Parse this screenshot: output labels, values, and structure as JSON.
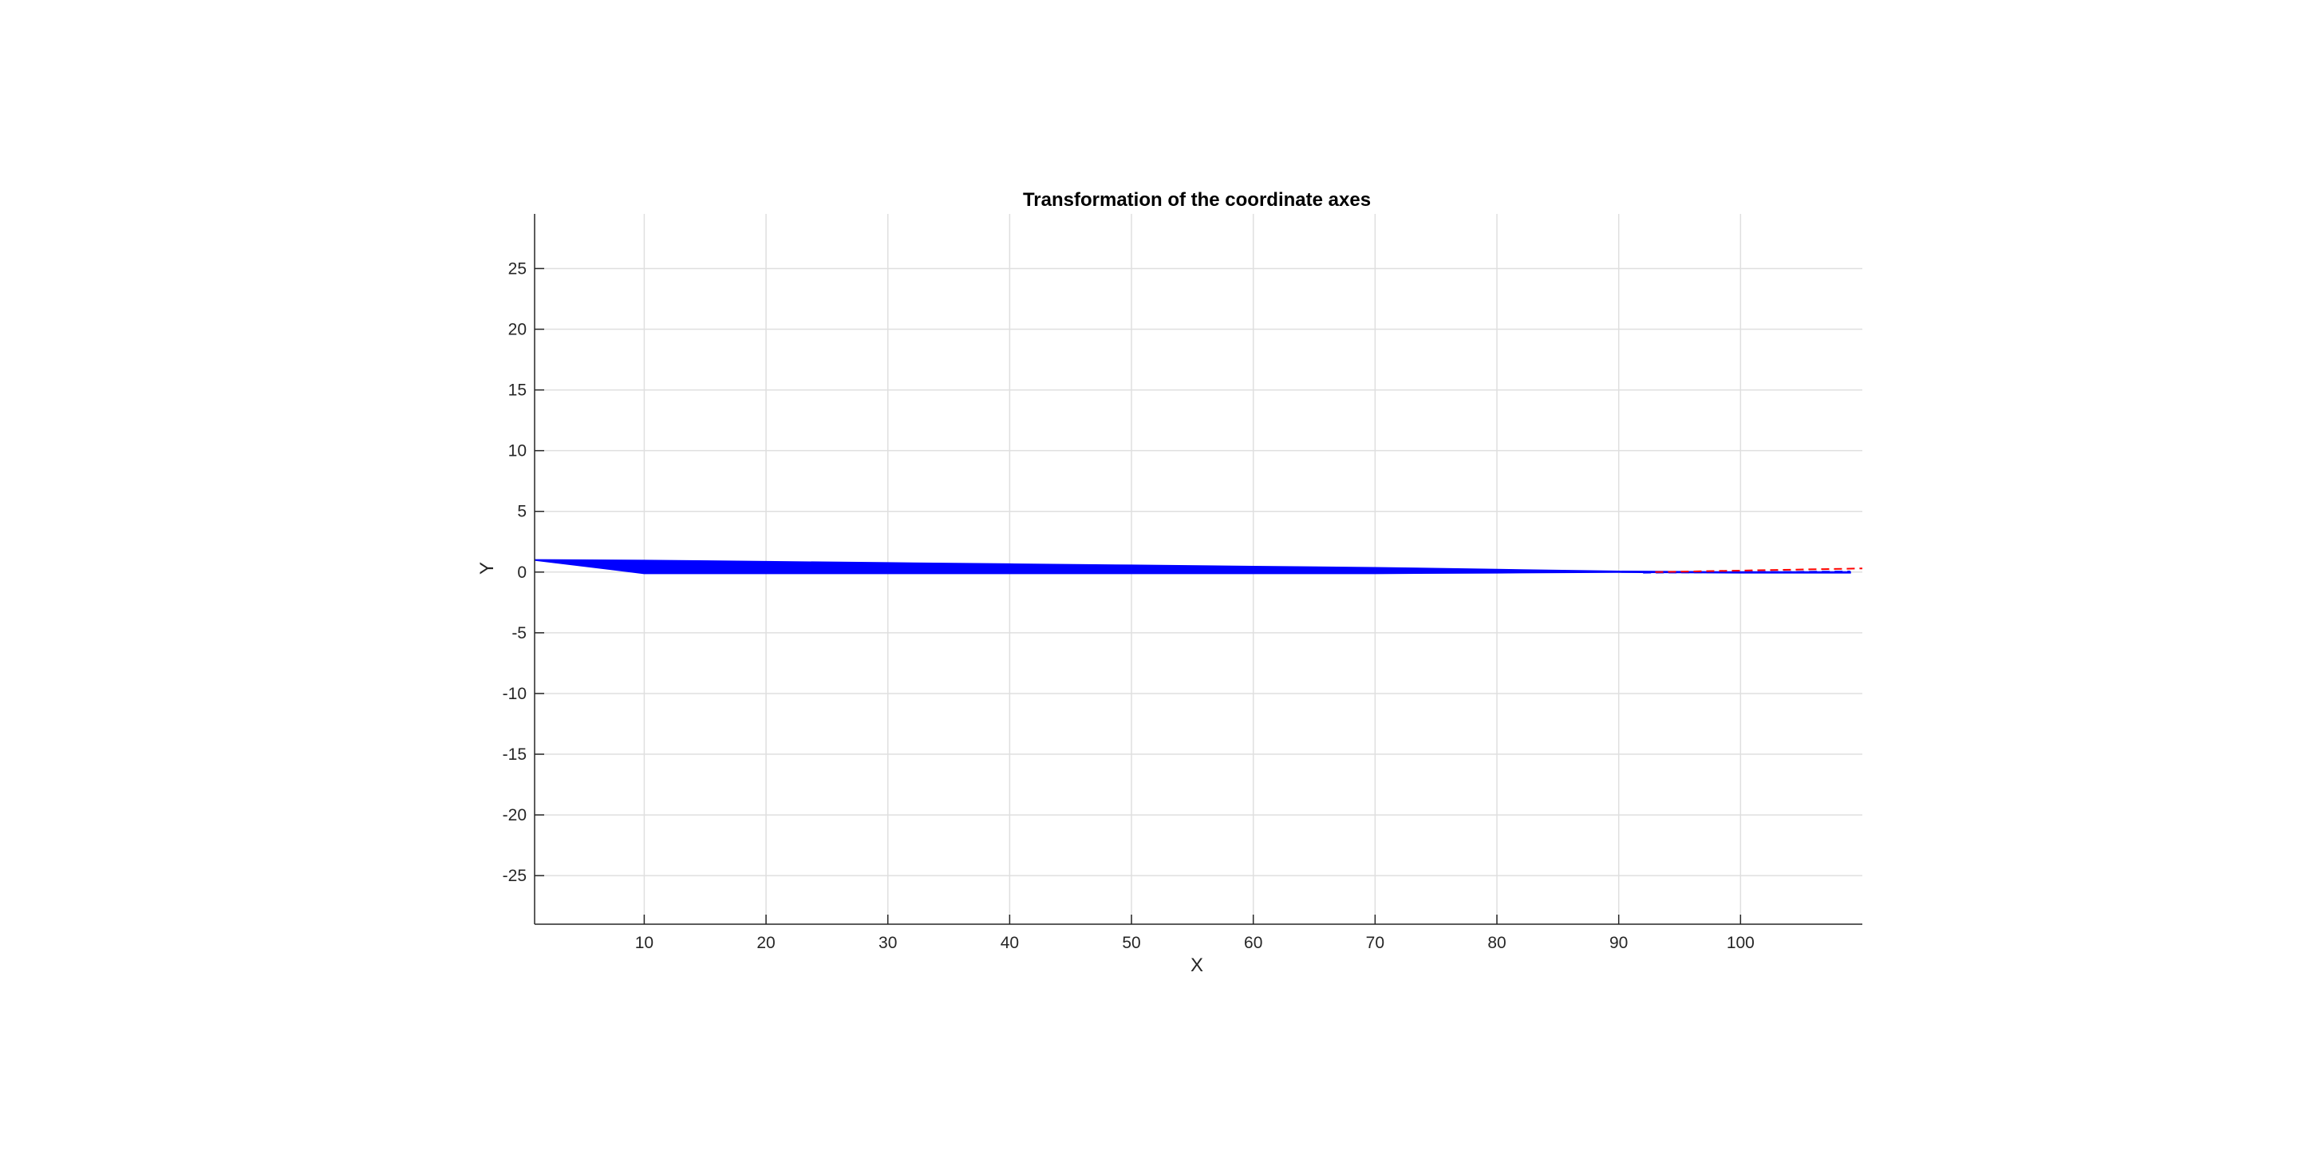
{
  "chart_data": {
    "type": "line",
    "title": "Transformation of the coordinate axes",
    "xlabel": "X",
    "ylabel": "Y",
    "xlim": [
      1,
      110
    ],
    "ylim": [
      -29,
      29.5
    ],
    "xticks": [
      10,
      20,
      30,
      40,
      50,
      60,
      70,
      80,
      90,
      100
    ],
    "yticks": [
      25,
      20,
      15,
      10,
      5,
      0,
      -5,
      -10,
      -15,
      -20,
      -25
    ],
    "xtick_labels": [
      "10",
      "20",
      "30",
      "40",
      "50",
      "60",
      "70",
      "80",
      "90",
      "100"
    ],
    "ytick_labels": [
      "25",
      "20",
      "15",
      "10",
      "5",
      "0",
      "-5",
      "-10",
      "-15",
      "-20",
      "-25"
    ],
    "grid": true,
    "series": [
      {
        "color": "#0000ff",
        "kind": "filled-band",
        "x": [
          1,
          10,
          20,
          30,
          40,
          50,
          60,
          70,
          80,
          90,
          100,
          109
        ],
        "upper": [
          1.0,
          0.95,
          0.85,
          0.75,
          0.65,
          0.55,
          0.45,
          0.35,
          0.2,
          0.05,
          0.0,
          0.0
        ],
        "lower": [
          1.0,
          -0.1,
          -0.1,
          -0.1,
          -0.1,
          -0.1,
          -0.1,
          -0.1,
          -0.05,
          0.0,
          -0.05,
          -0.05
        ]
      },
      {
        "color": "#0000ff",
        "kind": "dashed",
        "x": [
          92,
          109
        ],
        "y": [
          -0.05,
          0.05
        ]
      },
      {
        "color": "#ff0000",
        "kind": "dashed",
        "x": [
          93,
          110
        ],
        "y": [
          0.0,
          0.3
        ]
      }
    ]
  },
  "colors": {
    "axis": "#262626",
    "grid": "#dfdfdf",
    "series_blue": "#0000ff",
    "series_red": "#ff0000"
  }
}
